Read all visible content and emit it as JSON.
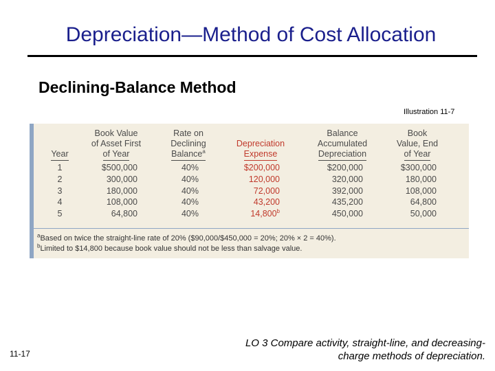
{
  "slide": {
    "title": "Depreciation—Method of Cost Allocation",
    "subtitle": "Declining-Balance Method",
    "illustration_label": "Illustration 11-7",
    "page_number": "11-17",
    "learning_objective_line1": "LO 3  Compare activity, straight-line, and decreasing-",
    "learning_objective_line2": "charge methods of depreciation."
  },
  "table": {
    "headers": [
      {
        "line1": "",
        "line2": "",
        "line3": "Year"
      },
      {
        "line1": "Book Value",
        "line2": "of Asset First",
        "line3": "of Year"
      },
      {
        "line1": "Rate on",
        "line2": "Declining",
        "line3": "Balance",
        "sup": "a"
      },
      {
        "line1": "",
        "line2": "Depreciation",
        "line3": "Expense"
      },
      {
        "line1": "Balance",
        "line2": "Accumulated",
        "line3": "Depreciation"
      },
      {
        "line1": "Book",
        "line2": "Value, End",
        "line3": "of Year"
      }
    ],
    "rows": [
      {
        "year": "1",
        "book_value_first": "$500,000",
        "rate": "40%",
        "expense": "$200,000",
        "expense_sup": "",
        "accumulated": "$200,000",
        "book_value_end": "$300,000"
      },
      {
        "year": "2",
        "book_value_first": "300,000",
        "rate": "40%",
        "expense": "120,000",
        "expense_sup": "",
        "accumulated": "320,000",
        "book_value_end": "180,000"
      },
      {
        "year": "3",
        "book_value_first": "180,000",
        "rate": "40%",
        "expense": "72,000",
        "expense_sup": "",
        "accumulated": "392,000",
        "book_value_end": "108,000"
      },
      {
        "year": "4",
        "book_value_first": "108,000",
        "rate": "40%",
        "expense": "43,200",
        "expense_sup": "",
        "accumulated": "435,200",
        "book_value_end": "64,800"
      },
      {
        "year": "5",
        "book_value_first": "64,800",
        "rate": "40%",
        "expense": "14,800",
        "expense_sup": "b",
        "accumulated": "450,000",
        "book_value_end": "50,000"
      }
    ]
  },
  "notes": {
    "a_marker": "a",
    "a_text": "Based on twice the straight-line rate of 20% ($90,000/$450,000 = 20%; 20% × 2 = 40%).",
    "b_marker": "b",
    "b_text": "Limited to $14,800 because book value should not be less than salvage value."
  },
  "colors": {
    "title": "#1a1f8c",
    "panel_background": "#f3eee1",
    "accent_bar": "#8fa6c4",
    "expense_red": "#c0392b"
  }
}
